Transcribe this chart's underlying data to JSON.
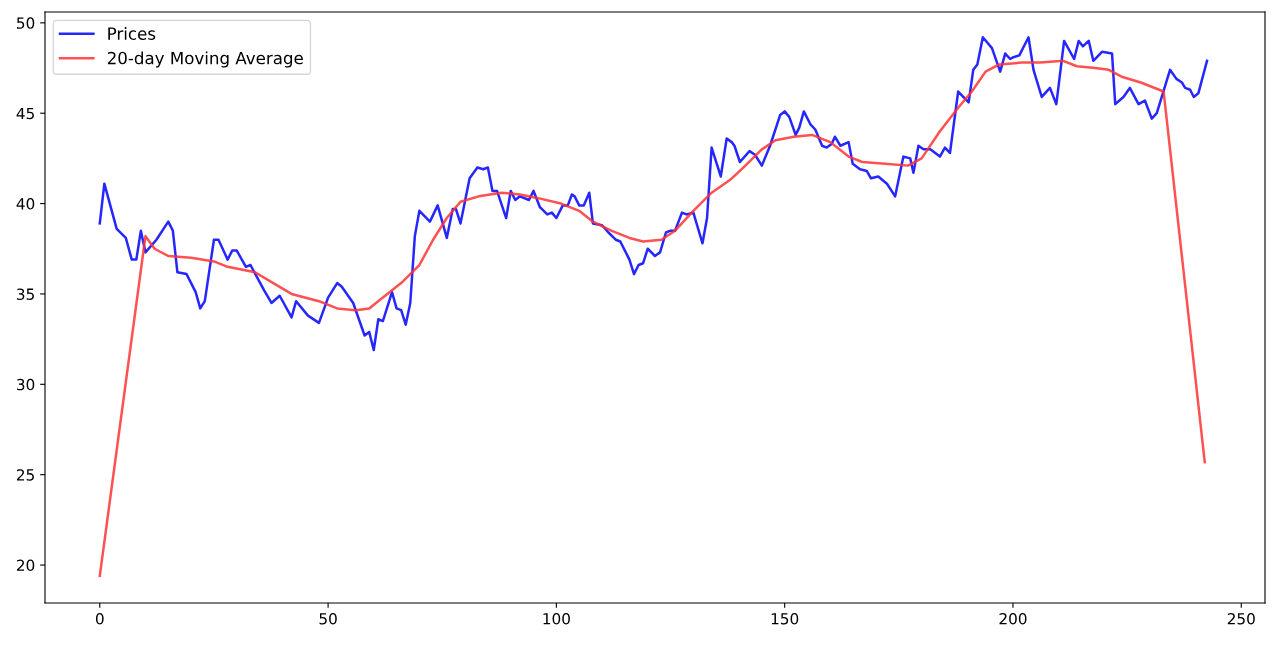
{
  "chart_data": {
    "type": "line",
    "legend": "top left",
    "grid": false,
    "xlim": [
      -12,
      255.2
    ],
    "xticks": [
      0,
      50,
      100,
      150,
      200,
      250
    ],
    "ylim": [
      17.9,
      50.6
    ],
    "yticks": [
      20,
      25,
      30,
      35,
      40,
      45,
      50
    ],
    "series": [
      {
        "name": "Prices",
        "color": "#0000ff",
        "x": [
          0,
          1,
          3.7,
          5.7,
          7,
          8,
          9,
          10,
          12.4,
          15,
          16,
          17,
          19,
          21,
          22,
          23,
          25,
          26,
          28,
          29,
          30,
          32,
          33,
          36,
          37.6,
          39.4,
          42,
          43,
          45.6,
          48,
          50,
          52,
          53,
          55.5,
          58,
          59,
          60,
          61,
          62,
          64,
          65,
          66,
          67,
          68,
          69,
          70,
          72.3,
          74,
          76,
          77.3,
          78,
          79,
          81,
          82.7,
          84,
          85,
          86,
          87,
          89,
          90,
          91,
          92,
          94,
          95,
          96.4,
          98,
          99,
          100,
          101.4,
          102.5,
          103.4,
          104,
          105,
          106,
          107.2,
          108,
          110,
          111.4,
          113,
          114,
          116,
          117,
          118,
          119,
          120,
          121.6,
          122.7,
          124,
          125,
          126,
          127.5,
          128.5,
          130,
          130.7,
          132,
          133,
          134,
          135.5,
          136,
          137.3,
          138.4,
          139,
          140.2,
          142.3,
          143.5,
          145,
          146.8,
          149,
          150,
          151,
          152.4,
          153.2,
          154.2,
          155.6,
          156.7,
          158.2,
          159.2,
          160.3,
          161,
          162.2,
          164,
          164.9,
          166.5,
          168,
          168.9,
          170.5,
          172.4,
          174.2,
          176,
          177.5,
          178.2,
          179.3,
          180.4,
          181.9,
          184,
          185.1,
          186.2,
          188,
          190.3,
          191.3,
          192.2,
          193.4,
          195.4,
          197.2,
          198.3,
          199.4,
          200.1,
          201.4,
          203.4,
          204.5,
          206.3,
          208.1,
          209.5,
          211.2,
          213.4,
          214.4,
          215.3,
          216.6,
          217.6,
          219.5,
          221.7,
          222.4,
          224.2,
          225.6,
          227.5,
          228.9,
          230.4,
          231.5,
          234.4,
          235.8,
          237,
          237.7,
          238.8,
          239.6,
          240.6,
          242.5
        ],
        "values": [
          38.9,
          41.1,
          38.6,
          38.1,
          36.9,
          36.9,
          38.5,
          37.3,
          38.0,
          39.0,
          38.5,
          36.2,
          36.1,
          35.1,
          34.2,
          34.6,
          38.0,
          38.0,
          36.9,
          37.4,
          37.4,
          36.5,
          36.6,
          35.2,
          34.5,
          34.9,
          33.7,
          34.6,
          33.8,
          33.4,
          34.8,
          35.6,
          35.4,
          34.5,
          32.7,
          32.9,
          31.9,
          33.6,
          33.5,
          35.1,
          34.2,
          34.1,
          33.3,
          34.5,
          38.2,
          39.6,
          39.0,
          39.9,
          38.1,
          39.7,
          39.7,
          38.9,
          41.4,
          42.0,
          41.9,
          42.0,
          40.7,
          40.7,
          39.2,
          40.7,
          40.2,
          40.4,
          40.2,
          40.7,
          39.8,
          39.4,
          39.5,
          39.2,
          39.9,
          39.9,
          40.5,
          40.4,
          39.9,
          39.9,
          40.6,
          38.9,
          38.8,
          38.4,
          38.0,
          37.9,
          36.9,
          36.1,
          36.6,
          36.7,
          37.5,
          37.1,
          37.3,
          38.4,
          38.5,
          38.5,
          39.5,
          39.4,
          39.5,
          38.9,
          37.8,
          39.2,
          43.1,
          41.9,
          41.5,
          43.6,
          43.4,
          43.2,
          42.3,
          42.9,
          42.7,
          42.1,
          43.2,
          44.9,
          45.1,
          44.8,
          43.8,
          44.2,
          45.1,
          44.4,
          44.1,
          43.2,
          43.1,
          43.3,
          43.7,
          43.2,
          43.4,
          42.2,
          41.9,
          41.8,
          41.4,
          41.5,
          41.1,
          40.4,
          42.6,
          42.5,
          41.7,
          43.2,
          43.0,
          43.0,
          42.6,
          43.1,
          42.8,
          46.2,
          45.6,
          47.4,
          47.7,
          49.2,
          48.6,
          47.3,
          48.3,
          48.0,
          48.1,
          48.2,
          49.2,
          47.4,
          45.9,
          46.4,
          45.5,
          49.0,
          48.0,
          49.0,
          48.7,
          49.0,
          47.9,
          48.4,
          48.3,
          45.5,
          45.9,
          46.4,
          45.5,
          45.7,
          44.7,
          45.0,
          47.4,
          46.9,
          46.7,
          46.4,
          46.3,
          45.9,
          46.1,
          47.9
        ]
      },
      {
        "name": "20-day Moving Average",
        "color": "#ff3333",
        "x": [
          0,
          10,
          12,
          15,
          20,
          25,
          28,
          34,
          38,
          42,
          48,
          52,
          56,
          59,
          62,
          66,
          70,
          73,
          76,
          79,
          83,
          88,
          92,
          96,
          101,
          105,
          108,
          112,
          116,
          119,
          123,
          126,
          130,
          134,
          138,
          141,
          145,
          148,
          152,
          156,
          160,
          164,
          167,
          172,
          177,
          180,
          184,
          188,
          191,
          194,
          197,
          202,
          206,
          211,
          214,
          218,
          221,
          224,
          228,
          233,
          242
        ],
        "values": [
          19.4,
          38.2,
          37.5,
          37.1,
          37.0,
          36.8,
          36.5,
          36.2,
          35.6,
          35.0,
          34.6,
          34.2,
          34.1,
          34.2,
          34.8,
          35.6,
          36.6,
          38.0,
          39.2,
          40.1,
          40.4,
          40.6,
          40.5,
          40.3,
          40.0,
          39.6,
          39.0,
          38.5,
          38.1,
          37.9,
          38.0,
          38.5,
          39.6,
          40.6,
          41.3,
          42.0,
          43.0,
          43.5,
          43.7,
          43.8,
          43.4,
          42.6,
          42.3,
          42.2,
          42.1,
          42.5,
          44.0,
          45.3,
          46.2,
          47.3,
          47.7,
          47.8,
          47.8,
          47.9,
          47.6,
          47.5,
          47.4,
          47.0,
          46.7,
          46.2,
          25.7
        ]
      }
    ]
  }
}
